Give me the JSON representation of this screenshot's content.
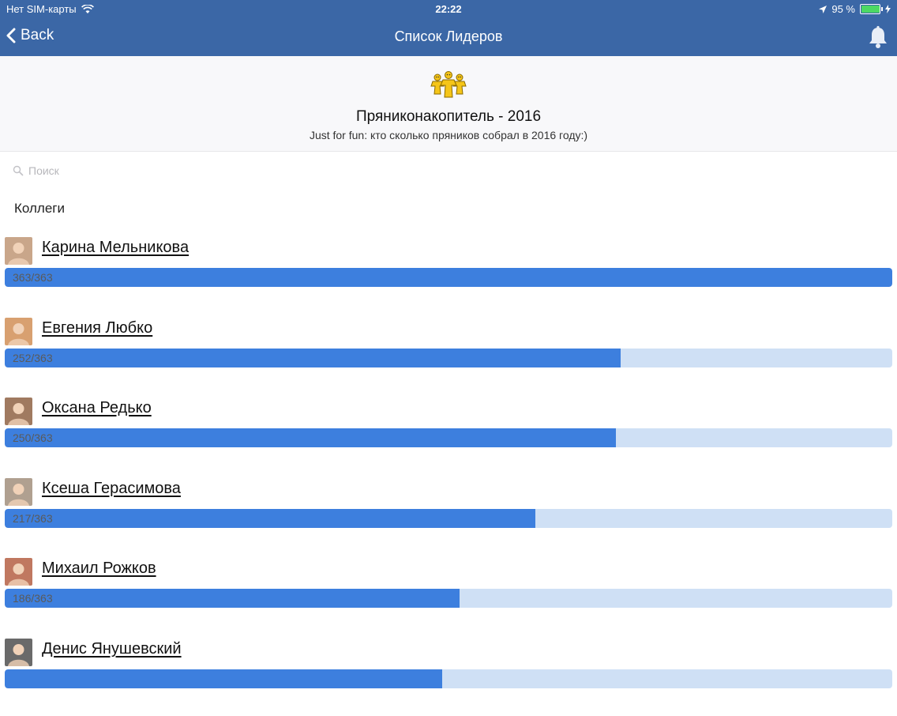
{
  "status_bar": {
    "carrier": "Нет SIM-карты",
    "time": "22:22",
    "battery": "95 %",
    "battery_level": 0.95
  },
  "nav": {
    "back_label": "Back",
    "title": "Список Лидеров",
    "bell_icon": "bell-icon"
  },
  "header": {
    "logo_icon": "gingerbread-logo-icon",
    "title": "Пряниконакопитель - 2016",
    "subtitle": "Just for fun: кто сколько пряников собрал в 2016 году:)"
  },
  "search": {
    "placeholder": "Поиск",
    "icon": "search-icon"
  },
  "section": {
    "label": "Коллеги"
  },
  "colors": {
    "nav_bg": "#3b67a6",
    "bar_fill": "#3d7fde",
    "bar_track": "#cfe0f5"
  },
  "leaders": [
    {
      "name": "Карина Мельникова",
      "score": 363,
      "total": 363,
      "progress": "363/363",
      "avatar_color": "#c9a68a"
    },
    {
      "name": "Евгения Любко",
      "score": 252,
      "total": 363,
      "progress": "252/363",
      "avatar_color": "#d8a070"
    },
    {
      "name": "Оксана Редько",
      "score": 250,
      "total": 363,
      "progress": "250/363",
      "avatar_color": "#a07a60"
    },
    {
      "name": "Ксеша Герасимова",
      "score": 217,
      "total": 363,
      "progress": "217/363",
      "avatar_color": "#b0a090"
    },
    {
      "name": "Михаил Рожков",
      "score": 186,
      "total": 363,
      "progress": "186/363",
      "avatar_color": "#c07860"
    },
    {
      "name": "Денис Янушевский",
      "score": 179,
      "total": 363,
      "progress": "",
      "avatar_color": "#6a6a6a"
    }
  ]
}
